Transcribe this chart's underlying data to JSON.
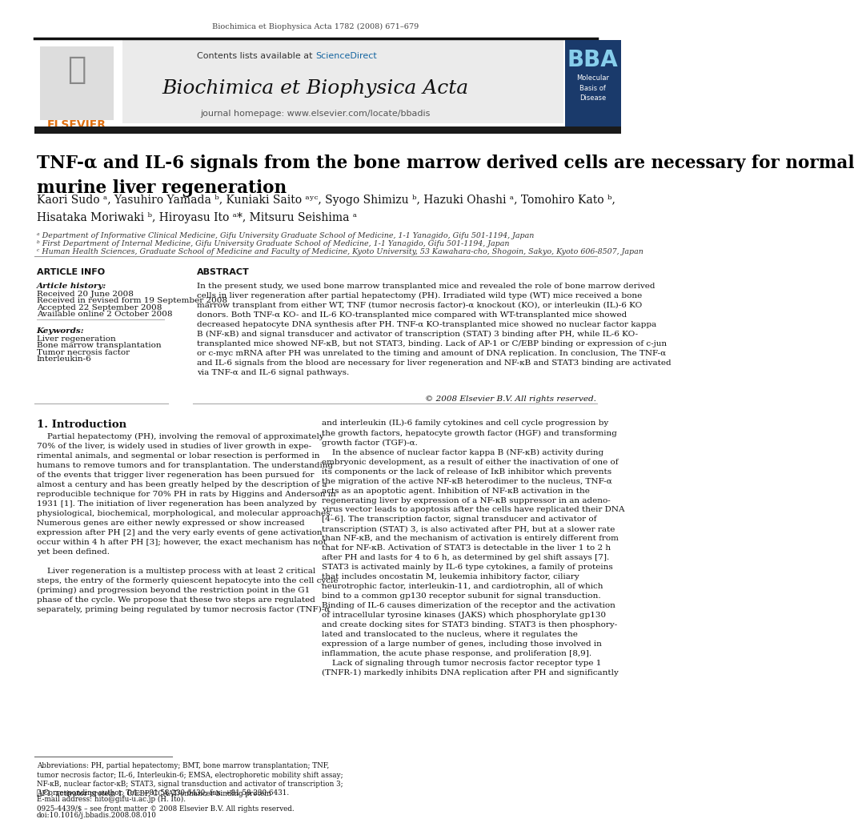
{
  "page_header": "Biochimica et Biophysica Acta 1782 (2008) 671–679",
  "journal_name": "Biochimica et Biophysica Acta",
  "journal_url": "journal homepage: www.elsevier.com/locate/bbadis",
  "contents_line": "Contents lists available at ScienceDirect",
  "bba_subtitle": "Molecular\nBasis of\nDisease",
  "article_title": "TNF-α and IL-6 signals from the bone marrow derived cells are necessary for normal\nmurine liver regeneration",
  "authors": "Kaori Sudo ᵃ, Yasuhiro Yamada ᵇ, Kuniaki Saito ᵃʸᶜ, Syogo Shimizu ᵇ, Hazuki Ohashi ᵃ, Tomohiro Kato ᵇ,\nHisataka Moriwaki ᵇ, Hiroyasu Ito ᵃ*, Mitsuru Seishima ᵃ",
  "affiliation_a": "ᵃ Department of Informative Clinical Medicine, Gifu University Graduate School of Medicine, 1-1 Yanagido, Gifu 501-1194, Japan",
  "affiliation_b": "ᵇ First Department of Internal Medicine, Gifu University Graduate School of Medicine, 1-1 Yanagido, Gifu 501-1194, Japan",
  "affiliation_c": "ᶜ Human Health Sciences, Graduate School of Medicine and Faculty of Medicine, Kyoto University, 53 Kawahara-cho, Shogoin, Sakyo, Kyoto 606-8507, Japan",
  "article_info_header": "ARTICLE INFO",
  "abstract_header": "ABSTRACT",
  "article_history_label": "Article history:",
  "received": "Received 20 June 2008",
  "received_revised": "Received in revised form 19 September 2008",
  "accepted": "Accepted 22 September 2008",
  "available": "Available online 2 October 2008",
  "keywords_label": "Keywords:",
  "keyword1": "Liver regeneration",
  "keyword2": "Bone marrow transplantation",
  "keyword3": "Tumor necrosis factor",
  "keyword4": "Interleukin-6",
  "abstract_text": "In the present study, we used bone marrow transplanted mice and revealed the role of bone marrow derived\ncells in liver regeneration after partial hepatectomy (PH). Irradiated wild type (WT) mice received a bone\nmarrow transplant from either WT, TNF (tumor necrosis factor)-α knockout (KO), or interleukin (IL)-6 KO\ndonors. Both TNF-α KO- and IL-6 KO-transplanted mice compared with WT-transplanted mice showed\ndecreased hepatocyte DNA synthesis after PH. TNF-α KO-transplanted mice showed no nuclear factor kappa\nB (NF-κB) and signal transducer and activator of transcription (STAT) 3 binding after PH, while IL-6 KO-\ntransplanted mice showed NF-κB, but not STAT3, binding. Lack of AP-1 or C/EBP binding or expression of c-jun\nor c-myc mRNA after PH was unrelated to the timing and amount of DNA replication. In conclusion, The TNF-α\nand IL-6 signals from the blood are necessary for liver regeneration and NF-κB and STAT3 binding are activated\nvia TNF-α and IL-6 signal pathways.",
  "copyright": "© 2008 Elsevier B.V. All rights reserved.",
  "intro_header": "1. Introduction",
  "intro_left": "    Partial hepatectomy (PH), involving the removal of approximately\n70% of the liver, is widely used in studies of liver growth in expe-\nrimental animals, and segmental or lobar resection is performed in\nhumans to remove tumors and for transplantation. The understanding\nof the events that trigger liver regeneration has been pursued for\nalmost a century and has been greatly helped by the description of a\nreproducible technique for 70% PH in rats by Higgins and Anderson in\n1931 [1]. The initiation of liver regeneration has been analyzed by\nphysiological, biochemical, morphological, and molecular approaches.\nNumerous genes are either newly expressed or show increased\nexpression after PH [2] and the very early events of gene activation\noccur within 4 h after PH [3]; however, the exact mechanism has not\nyet been defined.",
  "intro_left2": "    Liver regeneration is a multistep process with at least 2 critical\nsteps, the entry of the formerly quiescent hepatocyte into the cell cycle\n(priming) and progression beyond the restriction point in the G1\nphase of the cycle. We propose that these two steps are regulated\nseparately, priming being regulated by tumor necrosis factor (TNF)-α",
  "intro_right": "and interleukin (IL)-6 family cytokines and cell cycle progression by\nthe growth factors, hepatocyte growth factor (HGF) and transforming\ngrowth factor (TGF)-α.\n    In the absence of nuclear factor kappa B (NF-κB) activity during\nembryonic development, as a result of either the inactivation of one of\nits components or the lack of release of IκB inhibitor which prevents\nthe migration of the active NF-κB heterodimer to the nucleus, TNF-α\nacts as an apoptotic agent. Inhibition of NF-κB activation in the\nregenerating liver by expression of a NF-κB suppressor in an adeno-\nvirus vector leads to apoptosis after the cells have replicated their DNA\n[4–6]. The transcription factor, signal transducer and activator of\ntranscription (STAT) 3, is also activated after PH, but at a slower rate\nthan NF-κB, and the mechanism of activation is entirely different from\nthat for NF-κB. Activation of STAT3 is detectable in the liver 1 to 2 h\nafter PH and lasts for 4 to 6 h, as determined by gel shift assays [7].\nSTAT3 is activated mainly by IL-6 type cytokines, a family of proteins\nthat includes oncostatin M, leukemia inhibitory factor, ciliary\nneurotrophic factor, interleukin-11, and cardiotrophin, all of which\nbind to a common gp130 receptor subunit for signal transduction.\nBinding of IL-6 causes dimerization of the receptor and the activation\nof intracellular tyrosine kinases (JAKS) which phosphorylate gp130\nand create docking sites for STAT3 binding. STAT3 is then phosphory-\nlated and translocated to the nucleus, where it regulates the\nexpression of a large number of genes, including those involved in\ninflammation, the acute phase response, and proliferation [8,9].\n    Lack of signaling through tumor necrosis factor receptor type 1\n(TNFR-1) markedly inhibits DNA replication after PH and significantly",
  "footnote_abbrev": "Abbreviations: PH, partial hepatectomy; BMT, bone marrow transplantation; TNF,\ntumor necrosis factor; IL-6, Interleukin-6; EMSA, electrophoretic mobility shift assay;\nNF-κB, nuclear factor-κB; STAT3, signal transduction and activator of transcription 3;\nAP1, activator protein 1; C/EBP, CCAAT/enhancer binding protein",
  "footnote_star": "★ Corresponding author. Tel.: +81 58 230 6430; fax: +81 58 230 6431.",
  "footnote_email": "E-mail address: hito@gifu-u.ac.jp (H. Ito).",
  "issn_line1": "0925-4439/$ – see front matter © 2008 Elsevier B.V. All rights reserved.",
  "issn_line2": "doi:10.1016/j.bbadis.2008.08.010",
  "bg_color": "#ffffff",
  "sciencedirect_blue": "#1565a0",
  "elsevier_orange": "#e07010",
  "link_blue": "#1565a0",
  "dark_bar_color": "#1a1a1a",
  "gray_box_color": "#ebebeb",
  "bba_box_color": "#1a3a6b"
}
